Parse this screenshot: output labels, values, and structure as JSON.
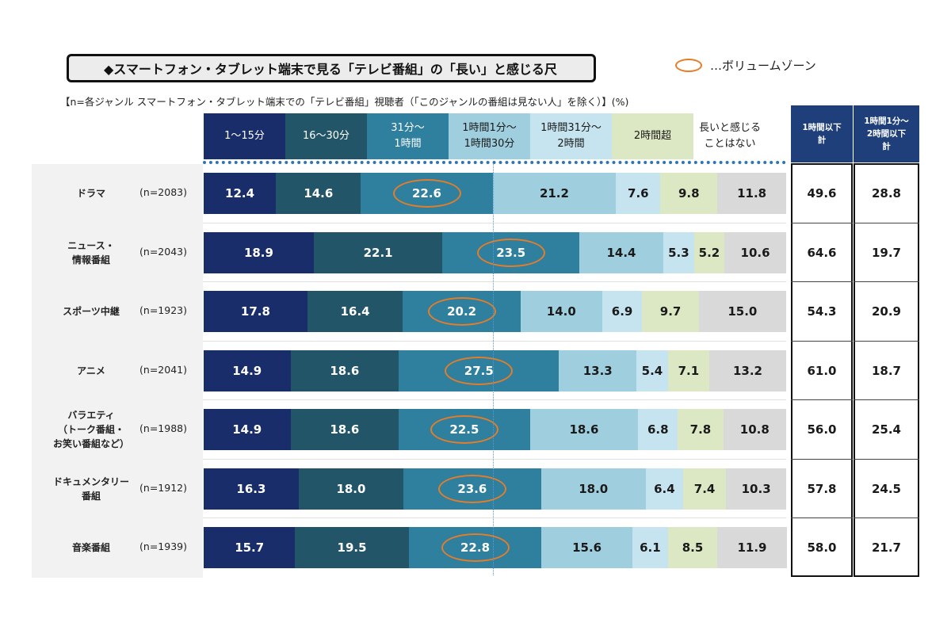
{
  "title": "◆スマートフォン・タブレット端末で見る「テレビ番組」の「長い」と感じる尺",
  "legend_label": "…ボリュームゾーン",
  "subtitle": "【n=各ジャンル スマートフォン・タブレット端末での「テレビ番組」視聴者（「このジャンルの番組は見ない人」を除く）】(%)",
  "colors": {
    "seg": [
      "#1a2d6b",
      "#235569",
      "#2f7f9e",
      "#9fcfdf",
      "#c6e4ef",
      "#dce8c4",
      "#d9d9d9"
    ],
    "text": [
      "#ffffff",
      "#ffffff",
      "#ffffff",
      "#1a1a1a",
      "#1a1a1a",
      "#1a1a1a",
      "#1a1a1a"
    ],
    "ellipse": "#e47d2a",
    "total_header": "#1f3f7a"
  },
  "categories": [
    {
      "lines": [
        "1〜15分"
      ]
    },
    {
      "lines": [
        "16〜30分"
      ]
    },
    {
      "lines": [
        "31分〜",
        "1時間"
      ]
    },
    {
      "lines": [
        "1時間1分〜",
        "1時間30分"
      ]
    },
    {
      "lines": [
        "1時間31分〜",
        "2時間"
      ]
    },
    {
      "lines": [
        "2時間超"
      ]
    },
    {
      "lines": [
        "長いと感じる",
        "ことはない"
      ]
    }
  ],
  "total_headers": [
    {
      "lines": [
        "1時間以下",
        "計"
      ]
    },
    {
      "lines": [
        "1時間1分〜",
        "2時間以下",
        "計"
      ]
    }
  ],
  "chart_data": {
    "type": "bar",
    "orientation": "horizontal",
    "stacked": true,
    "unit": "%",
    "title": "◆スマートフォン・タブレット端末で見る「テレビ番組」の「長い」と感じる尺",
    "categories": [
      "1〜15分",
      "16〜30分",
      "31分〜1時間",
      "1時間1分〜1時間30分",
      "1時間31分〜2時間",
      "2時間超",
      "長いと感じることはない"
    ],
    "volume_zone_index": 2,
    "rows": [
      {
        "label_lines": [
          "ドラマ"
        ],
        "n": "(n=2083)",
        "values": [
          12.4,
          14.6,
          22.6,
          21.2,
          7.6,
          9.8,
          11.8
        ],
        "value_labels": [
          "12.4",
          "14.6",
          "22.6",
          "21.2",
          "7.6",
          "9.8",
          "11.8"
        ],
        "totals": [
          "49.6",
          "28.8"
        ]
      },
      {
        "label_lines": [
          "ニュース・",
          "情報番組"
        ],
        "n": "(n=2043)",
        "values": [
          18.9,
          22.1,
          23.5,
          14.4,
          5.3,
          5.2,
          10.6
        ],
        "value_labels": [
          "18.9",
          "22.1",
          "23.5",
          "14.4",
          "5.3",
          "5.2",
          "10.6"
        ],
        "totals": [
          "64.6",
          "19.7"
        ]
      },
      {
        "label_lines": [
          "スポーツ中継"
        ],
        "n": "(n=1923)",
        "values": [
          17.8,
          16.4,
          20.2,
          14.0,
          6.9,
          9.7,
          15.0
        ],
        "value_labels": [
          "17.8",
          "16.4",
          "20.2",
          "14.0",
          "6.9",
          "9.7",
          "15.0"
        ],
        "totals": [
          "54.3",
          "20.9"
        ]
      },
      {
        "label_lines": [
          "アニメ"
        ],
        "n": "(n=2041)",
        "values": [
          14.9,
          18.6,
          27.5,
          13.3,
          5.4,
          7.1,
          13.2
        ],
        "value_labels": [
          "14.9",
          "18.6",
          "27.5",
          "13.3",
          "5.4",
          "7.1",
          "13.2"
        ],
        "totals": [
          "61.0",
          "18.7"
        ]
      },
      {
        "label_lines": [
          "バラエティ",
          "（トーク番組・",
          "お笑い番組など）"
        ],
        "n": "(n=1988)",
        "values": [
          14.9,
          18.6,
          22.5,
          18.6,
          6.8,
          7.8,
          10.8
        ],
        "value_labels": [
          "14.9",
          "18.6",
          "22.5",
          "18.6",
          "6.8",
          "7.8",
          "10.8"
        ],
        "totals": [
          "56.0",
          "25.4"
        ]
      },
      {
        "label_lines": [
          "ドキュメンタリー",
          "番組"
        ],
        "n": "(n=1912)",
        "values": [
          16.3,
          18.0,
          23.6,
          18.0,
          6.4,
          7.4,
          10.3
        ],
        "value_labels": [
          "16.3",
          "18.0",
          "23.6",
          "18.0",
          "6.4",
          "7.4",
          "10.3"
        ],
        "totals": [
          "57.8",
          "24.5"
        ]
      },
      {
        "label_lines": [
          "音楽番組"
        ],
        "n": "(n=1939)",
        "values": [
          15.7,
          19.5,
          22.8,
          15.6,
          6.1,
          8.5,
          11.9
        ],
        "value_labels": [
          "15.7",
          "19.5",
          "22.8",
          "15.6",
          "6.1",
          "8.5",
          "11.9"
        ],
        "totals": [
          "58.0",
          "21.7"
        ]
      }
    ]
  }
}
